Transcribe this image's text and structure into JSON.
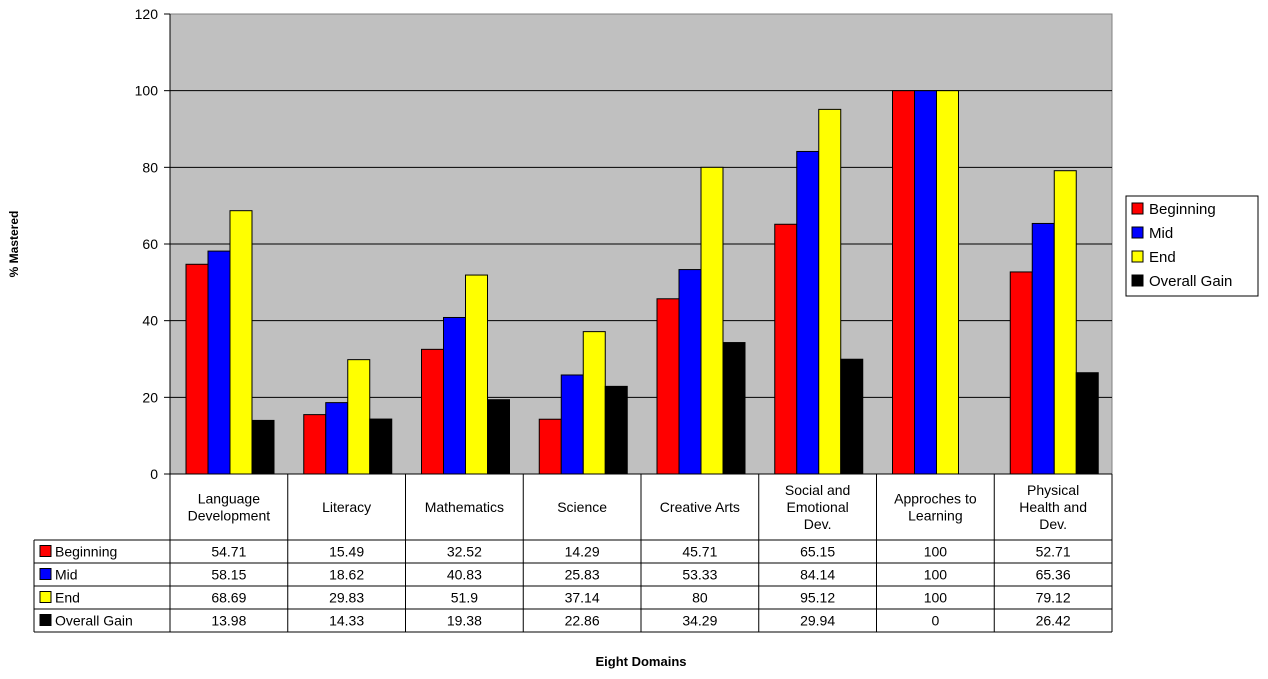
{
  "chart_data": {
    "type": "bar",
    "xlabel": "Eight Domains",
    "ylabel": "% Mastered",
    "ylim": [
      0,
      120
    ],
    "yticks": [
      "0",
      "20",
      "40",
      "60",
      "80",
      "100",
      "120"
    ],
    "grid": true,
    "legend_position": "right",
    "categories": [
      [
        "Language",
        "Development"
      ],
      [
        "Literacy"
      ],
      [
        "Mathematics"
      ],
      [
        "Science"
      ],
      [
        "Creative Arts"
      ],
      [
        "Social and",
        "Emotional",
        "Dev."
      ],
      [
        "Approches to",
        "Learning"
      ],
      [
        "Physical",
        "Health and",
        "Dev."
      ]
    ],
    "series": [
      {
        "name": "Beginning",
        "color": "#ff0000",
        "values": [
          54.71,
          15.49,
          32.52,
          14.29,
          45.71,
          65.15,
          100,
          52.71
        ]
      },
      {
        "name": "Mid",
        "color": "#0000ff",
        "values": [
          58.15,
          18.62,
          40.83,
          25.83,
          53.33,
          84.14,
          100,
          65.36
        ]
      },
      {
        "name": "End",
        "color": "#ffff00",
        "values": [
          68.69,
          29.83,
          51.9,
          37.14,
          80,
          95.12,
          100,
          79.12
        ]
      },
      {
        "name": "Overall Gain",
        "color": "#000000",
        "values": [
          13.98,
          14.33,
          19.38,
          22.86,
          34.29,
          29.94,
          0,
          26.42
        ]
      }
    ],
    "data_table_labels": [
      [
        "54.71",
        "15.49",
        "32.52",
        "14.29",
        "45.71",
        "65.15",
        "100",
        "52.71"
      ],
      [
        "58.15",
        "18.62",
        "40.83",
        "25.83",
        "53.33",
        "84.14",
        "100",
        "65.36"
      ],
      [
        "68.69",
        "29.83",
        "51.9",
        "37.14",
        "80",
        "95.12",
        "100",
        "79.12"
      ],
      [
        "13.98",
        "14.33",
        "19.38",
        "22.86",
        "34.29",
        "29.94",
        "0",
        "26.42"
      ]
    ],
    "plot_background": "#c0c0c0"
  }
}
